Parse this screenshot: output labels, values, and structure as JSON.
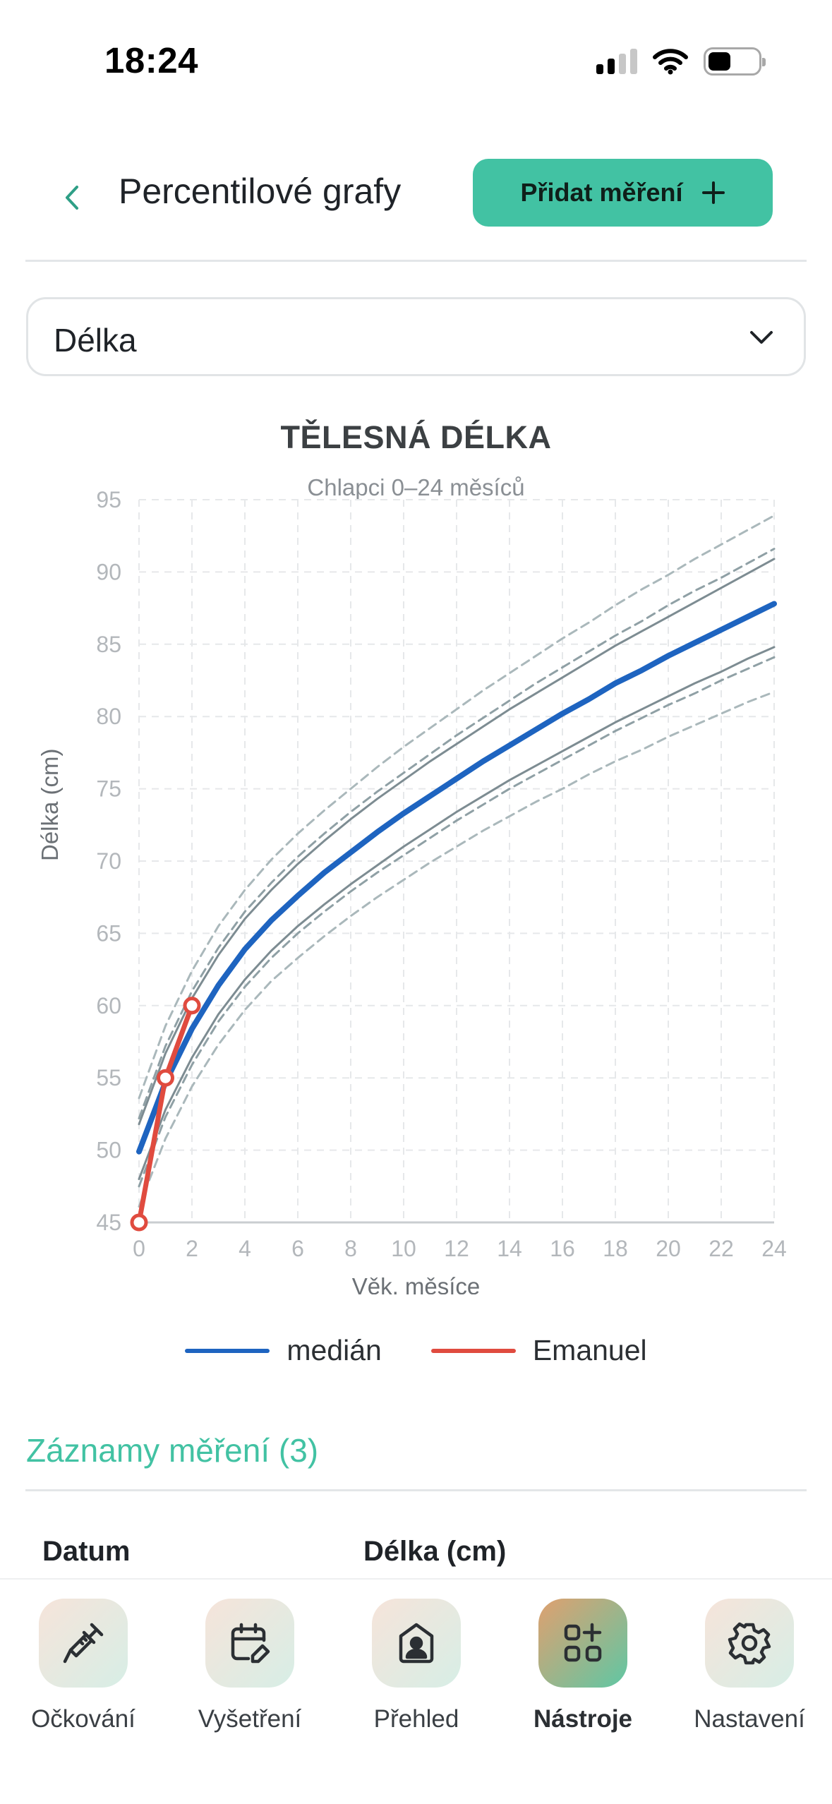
{
  "status_bar": {
    "time": "18:24"
  },
  "header": {
    "title": "Percentilové grafy",
    "add_button_label": "Přidat měření"
  },
  "selector": {
    "value": "Délka"
  },
  "chart_data": {
    "type": "line",
    "title": "TĚLESNÁ DÉLKA",
    "subtitle": "Chlapci 0–24 měsíců",
    "xlabel": "Věk, měsíce",
    "ylabel": "Délka (cm)",
    "xlim": [
      0,
      24
    ],
    "ylim": [
      45,
      95
    ],
    "x_ticks": [
      0,
      2,
      4,
      6,
      8,
      10,
      12,
      14,
      16,
      18,
      20,
      22,
      24
    ],
    "y_ticks": [
      45,
      50,
      55,
      60,
      65,
      70,
      75,
      80,
      85,
      90,
      95
    ],
    "grid": true,
    "legend_position": "bottom",
    "x": [
      0,
      1,
      2,
      3,
      4,
      5,
      6,
      7,
      8,
      9,
      10,
      11,
      12,
      13,
      14,
      15,
      16,
      17,
      18,
      19,
      20,
      21,
      22,
      23,
      24
    ],
    "series": [
      {
        "style": "dashed",
        "color": "#aab8bb",
        "values": [
          53.6,
          58.6,
          62.4,
          65.5,
          68.0,
          70.1,
          71.9,
          73.5,
          75.0,
          76.5,
          77.9,
          79.2,
          80.5,
          81.8,
          83.0,
          84.2,
          85.4,
          86.5,
          87.7,
          88.8,
          89.8,
          90.9,
          91.9,
          92.9,
          93.9
        ]
      },
      {
        "style": "dashed",
        "color": "#8fa0a5",
        "values": [
          52.2,
          57.2,
          61.0,
          64.0,
          66.5,
          68.5,
          70.3,
          71.9,
          73.4,
          74.8,
          76.1,
          77.4,
          78.7,
          79.9,
          81.1,
          82.3,
          83.4,
          84.5,
          85.6,
          86.6,
          87.7,
          88.7,
          89.6,
          90.6,
          91.6
        ]
      },
      {
        "style": "solid",
        "color": "#7d8c92",
        "values": [
          51.8,
          56.7,
          60.5,
          63.5,
          66.0,
          68.0,
          69.8,
          71.4,
          72.9,
          74.3,
          75.6,
          76.9,
          78.1,
          79.3,
          80.5,
          81.6,
          82.7,
          83.8,
          84.9,
          85.9,
          86.9,
          87.9,
          88.9,
          89.9,
          90.9
        ]
      },
      {
        "name": "medián",
        "style": "solid",
        "color": "#1e64c0",
        "values": [
          49.9,
          54.7,
          58.4,
          61.4,
          63.9,
          65.9,
          67.6,
          69.2,
          70.6,
          72.0,
          73.3,
          74.5,
          75.7,
          76.9,
          78.0,
          79.1,
          80.2,
          81.2,
          82.3,
          83.2,
          84.2,
          85.1,
          86.0,
          86.9,
          87.8
        ]
      },
      {
        "style": "solid",
        "color": "#7d8c92",
        "values": [
          48.0,
          52.8,
          56.4,
          59.4,
          61.8,
          63.8,
          65.5,
          67.0,
          68.4,
          69.7,
          71.0,
          72.2,
          73.4,
          74.5,
          75.6,
          76.6,
          77.6,
          78.6,
          79.6,
          80.5,
          81.4,
          82.3,
          83.1,
          84.0,
          84.8
        ]
      },
      {
        "style": "dashed",
        "color": "#8fa0a5",
        "values": [
          47.5,
          52.3,
          55.9,
          58.9,
          61.3,
          63.3,
          65.0,
          66.5,
          67.9,
          69.2,
          70.4,
          71.6,
          72.8,
          73.9,
          75.0,
          76.0,
          77.0,
          78.0,
          79.0,
          79.9,
          80.8,
          81.6,
          82.5,
          83.3,
          84.1
        ]
      },
      {
        "style": "dashed",
        "color": "#aab8bb",
        "values": [
          46.1,
          50.8,
          54.4,
          57.3,
          59.7,
          61.7,
          63.3,
          64.8,
          66.2,
          67.5,
          68.7,
          69.9,
          71.0,
          72.1,
          73.1,
          74.1,
          75.0,
          76.0,
          76.9,
          77.7,
          78.6,
          79.4,
          80.2,
          81.0,
          81.7
        ]
      }
    ],
    "measurements": {
      "name": "Emanuel",
      "color": "#e04b3f",
      "x": [
        0,
        1,
        2
      ],
      "values": [
        45,
        55,
        60
      ]
    }
  },
  "records": {
    "title": "Záznamy měření (3)",
    "columns": [
      "Datum",
      "Délka (cm)"
    ]
  },
  "tabbar": {
    "items": [
      {
        "label": "Očkování",
        "icon": "syringe-icon",
        "active": false
      },
      {
        "label": "Vyšetření",
        "icon": "calendar-edit-icon",
        "active": false
      },
      {
        "label": "Přehled",
        "icon": "profile-icon",
        "active": false
      },
      {
        "label": "Nástroje",
        "icon": "tools-grid-icon",
        "active": true
      },
      {
        "label": "Nastavení",
        "icon": "gear-icon",
        "active": false
      }
    ]
  }
}
